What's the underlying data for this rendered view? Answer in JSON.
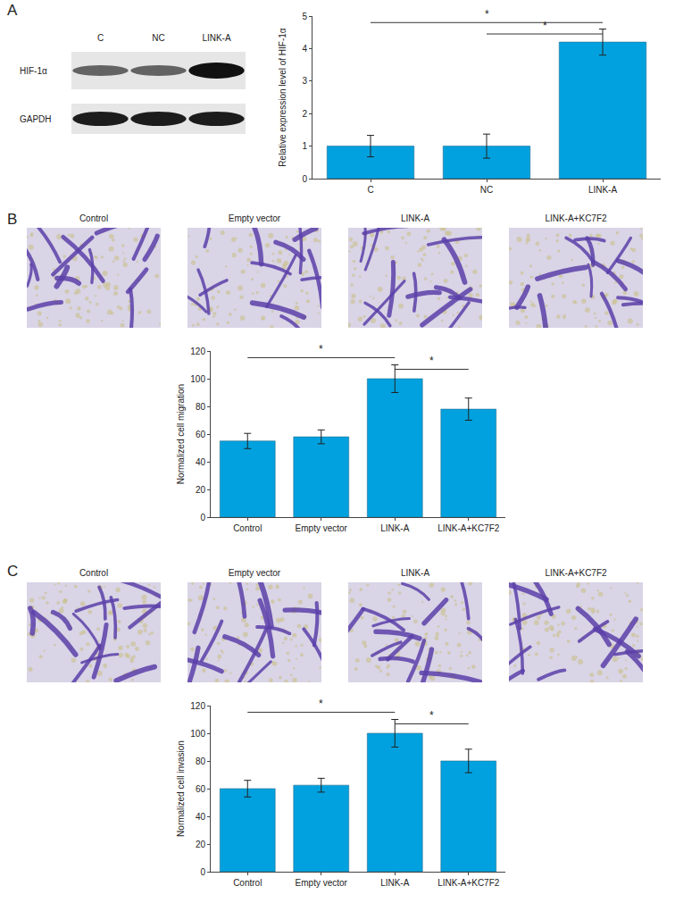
{
  "chart_data": [
    {
      "type": "bar",
      "categories": [
        "C",
        "NC",
        "LINK-A"
      ],
      "values": [
        1.0,
        1.0,
        4.2
      ],
      "errors": [
        0.33,
        0.37,
        0.4
      ],
      "color": "#00a1de",
      "y_label": "Relative expression level of HIF-1α",
      "ylim": [
        0,
        5
      ],
      "yticks": [
        0,
        1,
        2,
        3,
        4,
        5
      ],
      "grid": false,
      "annotations": [
        {
          "text": "*",
          "from": "C",
          "to": "LINK-A"
        },
        {
          "text": "*",
          "from": "NC",
          "to": "LINK-A"
        }
      ]
    },
    {
      "type": "bar",
      "categories": [
        "Control",
        "Empty vector",
        "LINK-A",
        "LINK-A+KC7F2"
      ],
      "values": [
        55,
        58,
        100,
        78
      ],
      "errors": [
        5.5,
        5,
        10,
        8
      ],
      "color": "#00a1de",
      "y_label": "Normalized cell migration",
      "ylim": [
        0,
        120
      ],
      "yticks": [
        0,
        20,
        40,
        60,
        80,
        100,
        120
      ],
      "grid": false,
      "annotations": [
        {
          "text": "*",
          "from": "Control",
          "to": "LINK-A"
        },
        {
          "text": "*",
          "from": "LINK-A",
          "to": "LINK-A+KC7F2"
        }
      ]
    },
    {
      "type": "bar",
      "categories": [
        "Control",
        "Empty vector",
        "LINK-A",
        "LINK-A+KC7F2"
      ],
      "values": [
        60,
        62.5,
        100,
        80
      ],
      "errors": [
        6,
        5,
        10,
        8.5
      ],
      "color": "#00a1de",
      "y_label": "Normalized cell invasion",
      "ylim": [
        0,
        120
      ],
      "yticks": [
        0,
        20,
        40,
        60,
        80,
        100,
        120
      ],
      "grid": false,
      "annotations": [
        {
          "text": "*",
          "from": "Control",
          "to": "LINK-A"
        },
        {
          "text": "*",
          "from": "LINK-A",
          "to": "LINK-A+KC7F2"
        }
      ]
    }
  ],
  "panels": [
    {
      "label": "A",
      "blot": {
        "lanes": [
          "C",
          "NC",
          "LINK-A"
        ],
        "rows": [
          "HIF-1α",
          "GAPDH"
        ]
      }
    },
    {
      "label": "B",
      "images": [
        "Control",
        "Empty vector",
        "LINK-A",
        "LINK-A+KC7F2"
      ]
    },
    {
      "label": "C",
      "images": [
        "Control",
        "Empty vector",
        "LINK-A",
        "LINK-A+KC7F2"
      ]
    }
  ]
}
